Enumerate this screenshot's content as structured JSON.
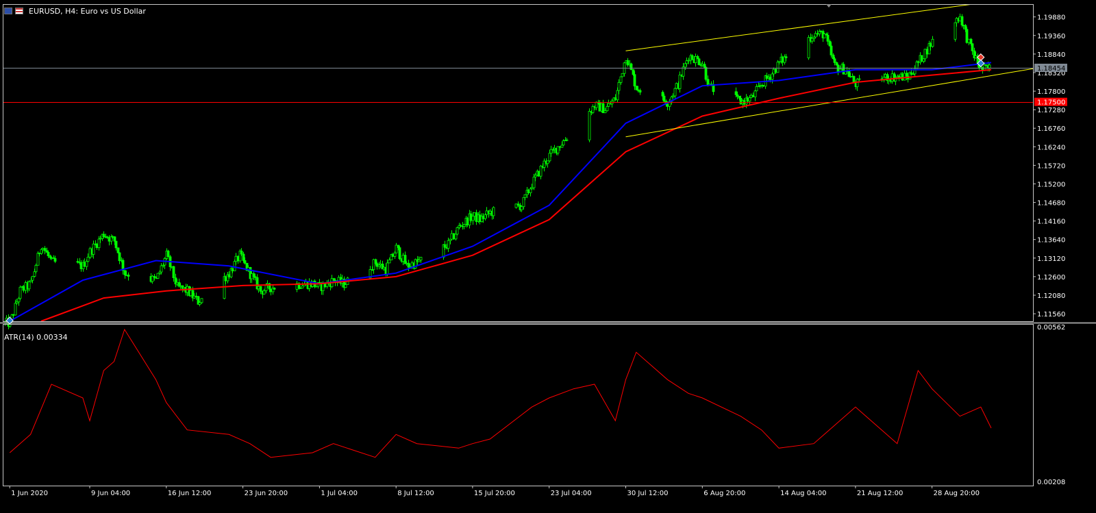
{
  "window": {
    "symbol": "EURUSD",
    "timeframe": "H4",
    "title": "EURUSD, H4:  Euro vs US Dollar"
  },
  "colors": {
    "background": "#000000",
    "bull_candle": "#00ff00",
    "ma_fast": "#0000ff",
    "ma_slow": "#ff0000",
    "channel": "#ffff00",
    "atr": "#ff0000",
    "bid_line": "#808a95",
    "level_line": "#ff0000"
  },
  "price_axis": {
    "ticks": [
      "1.19880",
      "1.19360",
      "1.18840",
      "1.18320",
      "1.17800",
      "1.17280",
      "1.16760",
      "1.16240",
      "1.15720",
      "1.15200",
      "1.14680",
      "1.14160",
      "1.13640",
      "1.13120",
      "1.12600",
      "1.12080",
      "1.11560"
    ],
    "current_price": "1.18454",
    "level_price": "1.17500"
  },
  "atr_axis": {
    "label": "ATR(14) 0.00334",
    "ticks": [
      "0.00562",
      "0.00208"
    ]
  },
  "time_axis": {
    "labels": [
      "1 Jun 2020",
      "9 Jun 04:00",
      "16 Jun 12:00",
      "23 Jun 20:00",
      "1 Jul 04:00",
      "8 Jul 12:00",
      "15 Jul 20:00",
      "23 Jul 04:00",
      "30 Jul 12:00",
      "6 Aug 20:00",
      "14 Aug 04:00",
      "21 Aug 12:00",
      "28 Aug 20:00"
    ]
  },
  "chart_data": {
    "type": "candlestick",
    "symbol": "EURUSD",
    "timeframe": "H4",
    "title": "EURUSD, H4:  Euro vs US Dollar",
    "ylim": [
      1.1135,
      1.2024
    ],
    "close_anchors": [
      {
        "x": "1 Jun 2020",
        "y": 1.113
      },
      {
        "x": "2 Jun 2020",
        "y": 1.122
      },
      {
        "x": "3 Jun 2020",
        "y": 1.124
      },
      {
        "x": "4 Jun 2020",
        "y": 1.135
      },
      {
        "x": "5 Jun 2020",
        "y": 1.13
      },
      {
        "x": "8 Jun 2020",
        "y": 1.129
      },
      {
        "x": "9 Jun 04:00",
        "y": 1.133
      },
      {
        "x": "10 Jun 2020",
        "y": 1.138
      },
      {
        "x": "11 Jun 2020",
        "y": 1.136
      },
      {
        "x": "12 Jun 2020",
        "y": 1.127
      },
      {
        "x": "15 Jun 2020",
        "y": 1.125
      },
      {
        "x": "16 Jun 12:00",
        "y": 1.132
      },
      {
        "x": "17 Jun 2020",
        "y": 1.123
      },
      {
        "x": "18 Jun 2020",
        "y": 1.122
      },
      {
        "x": "19 Jun 2020",
        "y": 1.119
      },
      {
        "x": "22 Jun 2020",
        "y": 1.127
      },
      {
        "x": "23 Jun 2020",
        "y": 1.132
      },
      {
        "x": "23 Jun 20:00",
        "y": 1.13
      },
      {
        "x": "25 Jun 2020",
        "y": 1.122
      },
      {
        "x": "26 Jun 2020",
        "y": 1.123
      },
      {
        "x": "29 Jun 2020",
        "y": 1.124
      },
      {
        "x": "30 Jun 2020",
        "y": 1.124
      },
      {
        "x": "1 Jul 04:00",
        "y": 1.123
      },
      {
        "x": "2 Jul 2020",
        "y": 1.125
      },
      {
        "x": "3 Jul 2020",
        "y": 1.124
      },
      {
        "x": "6 Jul 2020",
        "y": 1.13
      },
      {
        "x": "7 Jul 2020",
        "y": 1.128
      },
      {
        "x": "8 Jul 12:00",
        "y": 1.134
      },
      {
        "x": "9 Jul 2020",
        "y": 1.129
      },
      {
        "x": "10 Jul 2020",
        "y": 1.13
      },
      {
        "x": "13 Jul 2020",
        "y": 1.135
      },
      {
        "x": "14 Jul 2020",
        "y": 1.14
      },
      {
        "x": "15 Jul 20:00",
        "y": 1.143
      },
      {
        "x": "16 Jul 2020",
        "y": 1.142
      },
      {
        "x": "17 Jul 2020",
        "y": 1.144
      },
      {
        "x": "20 Jul 2020",
        "y": 1.146
      },
      {
        "x": "21 Jul 2020",
        "y": 1.152
      },
      {
        "x": "22 Jul 2020",
        "y": 1.157
      },
      {
        "x": "23 Jul 04:00",
        "y": 1.16
      },
      {
        "x": "24 Jul 2020",
        "y": 1.164
      },
      {
        "x": "27 Jul 2020",
        "y": 1.174
      },
      {
        "x": "28 Jul 2020",
        "y": 1.173
      },
      {
        "x": "29 Jul 2020",
        "y": 1.176
      },
      {
        "x": "30 Jul 12:00",
        "y": 1.188
      },
      {
        "x": "31 Jul 2020",
        "y": 1.179
      },
      {
        "x": "3 Aug 2020",
        "y": 1.175
      },
      {
        "x": "4 Aug 2020",
        "y": 1.18
      },
      {
        "x": "5 Aug 2020",
        "y": 1.188
      },
      {
        "x": "6 Aug 20:00",
        "y": 1.186
      },
      {
        "x": "7 Aug 2020",
        "y": 1.179
      },
      {
        "x": "10 Aug 2020",
        "y": 1.175
      },
      {
        "x": "11 Aug 2020",
        "y": 1.176
      },
      {
        "x": "12 Aug 2020",
        "y": 1.18
      },
      {
        "x": "13 Aug 2020",
        "y": 1.183
      },
      {
        "x": "14 Aug 04:00",
        "y": 1.186
      },
      {
        "x": "17 Aug 2020",
        "y": 1.194
      },
      {
        "x": "18 Aug 2020",
        "y": 1.194
      },
      {
        "x": "19 Aug 2020",
        "y": 1.185
      },
      {
        "x": "20 Aug 2020",
        "y": 1.184
      },
      {
        "x": "21 Aug 12:00",
        "y": 1.18
      },
      {
        "x": "24 Aug 2020",
        "y": 1.182
      },
      {
        "x": "25 Aug 2020",
        "y": 1.182
      },
      {
        "x": "26 Aug 2020",
        "y": 1.182
      },
      {
        "x": "27 Aug 2020",
        "y": 1.186
      },
      {
        "x": "28 Aug 20:00",
        "y": 1.192
      },
      {
        "x": "31 Aug 2020",
        "y": 1.199
      },
      {
        "x": "1 Sep 2020",
        "y": 1.19
      },
      {
        "x": "2 Sep 2020",
        "y": 1.184
      },
      {
        "x": "3 Sep 2020",
        "y": 1.1845
      }
    ],
    "indicators": [
      {
        "name": "",
        "type": "moving-average",
        "color": "#0000ff",
        "points": [
          {
            "x": "1 Jun 2020",
            "y": 1.1135
          },
          {
            "x": "8 Jun 2020",
            "y": 1.125
          },
          {
            "x": "15 Jun 2020",
            "y": 1.1305
          },
          {
            "x": "22 Jun 2020",
            "y": 1.129
          },
          {
            "x": "1 Jul 04:00",
            "y": 1.124
          },
          {
            "x": "8 Jul 12:00",
            "y": 1.127
          },
          {
            "x": "15 Jul 20:00",
            "y": 1.1345
          },
          {
            "x": "23 Jul 04:00",
            "y": 1.146
          },
          {
            "x": "30 Jul 12:00",
            "y": 1.169
          },
          {
            "x": "6 Aug 20:00",
            "y": 1.1795
          },
          {
            "x": "14 Aug 04:00",
            "y": 1.181
          },
          {
            "x": "21 Aug 12:00",
            "y": 1.184
          },
          {
            "x": "28 Aug 20:00",
            "y": 1.184
          },
          {
            "x": "3 Sep 2020",
            "y": 1.186
          }
        ]
      },
      {
        "name": "",
        "type": "moving-average",
        "color": "#ff0000",
        "points": [
          {
            "x": "4 Jun 2020",
            "y": 1.1135
          },
          {
            "x": "10 Jun 2020",
            "y": 1.12
          },
          {
            "x": "16 Jun 12:00",
            "y": 1.122
          },
          {
            "x": "23 Jun 20:00",
            "y": 1.1235
          },
          {
            "x": "1 Jul 04:00",
            "y": 1.124
          },
          {
            "x": "8 Jul 12:00",
            "y": 1.126
          },
          {
            "x": "15 Jul 20:00",
            "y": 1.132
          },
          {
            "x": "23 Jul 04:00",
            "y": 1.142
          },
          {
            "x": "30 Jul 12:00",
            "y": 1.161
          },
          {
            "x": "6 Aug 20:00",
            "y": 1.171
          },
          {
            "x": "14 Aug 04:00",
            "y": 1.176
          },
          {
            "x": "21 Aug 12:00",
            "y": 1.1805
          },
          {
            "x": "28 Aug 20:00",
            "y": 1.1825
          },
          {
            "x": "3 Sep 2020",
            "y": 1.184
          }
        ]
      }
    ],
    "trendlines": [
      {
        "name": "",
        "color": "#ffff00",
        "from": {
          "x": "30 Jul 12:00",
          "y": 1.1893
        },
        "to": {
          "x": "1 Sep 2020",
          "y": 1.2023
        }
      },
      {
        "name": "",
        "color": "#ffff00",
        "from": {
          "x": "30 Jul 12:00",
          "y": 1.1652
        },
        "to": {
          "x": "7 Sep 2020",
          "y": 1.1843
        }
      }
    ],
    "hlines": [
      {
        "price": 1.18454,
        "color": "#808a95",
        "label": "1.18454"
      },
      {
        "price": 1.175,
        "color": "#ff0000",
        "label": "1.17500"
      }
    ],
    "subchart": {
      "indicator": "ATR(14) 0.00334",
      "type": "line",
      "color": "#ff0000",
      "ylim": [
        0.00208,
        0.00562
      ],
      "points": [
        {
          "x": "1 Jun 2020",
          "y": 0.0028
        },
        {
          "x": "3 Jun 2020",
          "y": 0.0032
        },
        {
          "x": "5 Jun 2020",
          "y": 0.0043
        },
        {
          "x": "8 Jun 2020",
          "y": 0.004
        },
        {
          "x": "9 Jun 04:00",
          "y": 0.0035
        },
        {
          "x": "10 Jun 2020",
          "y": 0.0046
        },
        {
          "x": "11 Jun 2020",
          "y": 0.0048
        },
        {
          "x": "12 Jun 2020",
          "y": 0.0055
        },
        {
          "x": "15 Jun 2020",
          "y": 0.0044
        },
        {
          "x": "16 Jun 12:00",
          "y": 0.0039
        },
        {
          "x": "18 Jun 2020",
          "y": 0.0033
        },
        {
          "x": "22 Jun 2020",
          "y": 0.0032
        },
        {
          "x": "24 Jun 2020",
          "y": 0.003
        },
        {
          "x": "26 Jun 2020",
          "y": 0.0027
        },
        {
          "x": "30 Jun 2020",
          "y": 0.0028
        },
        {
          "x": "2 Jul 2020",
          "y": 0.003
        },
        {
          "x": "6 Jul 2020",
          "y": 0.0027
        },
        {
          "x": "8 Jul 12:00",
          "y": 0.0032
        },
        {
          "x": "10 Jul 2020",
          "y": 0.003
        },
        {
          "x": "14 Jul 2020",
          "y": 0.0029
        },
        {
          "x": "15 Jul 20:00",
          "y": 0.003
        },
        {
          "x": "17 Jul 2020",
          "y": 0.0031
        },
        {
          "x": "21 Jul 2020",
          "y": 0.0038
        },
        {
          "x": "23 Jul 04:00",
          "y": 0.004
        },
        {
          "x": "25 Jul 2020",
          "y": 0.0042
        },
        {
          "x": "27 Jul 2020",
          "y": 0.0043
        },
        {
          "x": "29 Jul 2020",
          "y": 0.0035
        },
        {
          "x": "30 Jul 12:00",
          "y": 0.0044
        },
        {
          "x": "31 Jul 2020",
          "y": 0.005
        },
        {
          "x": "3 Aug 2020",
          "y": 0.0044
        },
        {
          "x": "5 Aug 2020",
          "y": 0.0041
        },
        {
          "x": "6 Aug 20:00",
          "y": 0.004
        },
        {
          "x": "10 Aug 2020",
          "y": 0.0036
        },
        {
          "x": "12 Aug 2020",
          "y": 0.0033
        },
        {
          "x": "14 Aug 04:00",
          "y": 0.0029
        },
        {
          "x": "17 Aug 2020",
          "y": 0.003
        },
        {
          "x": "19 Aug 2020",
          "y": 0.0034
        },
        {
          "x": "21 Aug 12:00",
          "y": 0.0038
        },
        {
          "x": "25 Aug 2020",
          "y": 0.003
        },
        {
          "x": "27 Aug 2020",
          "y": 0.0046
        },
        {
          "x": "28 Aug 20:00",
          "y": 0.0042
        },
        {
          "x": "31 Aug 2020",
          "y": 0.0036
        },
        {
          "x": "2 Sep 2020",
          "y": 0.0038
        },
        {
          "x": "3 Sep 2020",
          "y": 0.00334
        }
      ]
    }
  }
}
